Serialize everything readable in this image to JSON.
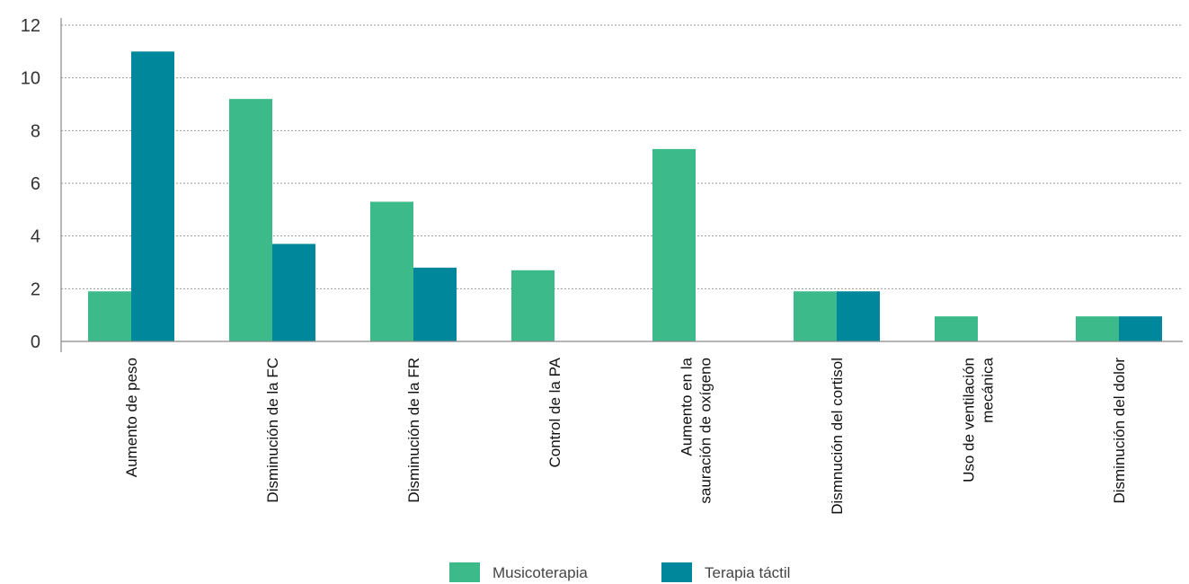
{
  "chart_data": {
    "type": "bar",
    "title": "",
    "xlabel": "",
    "ylabel": "",
    "categories": [
      [
        "Aumento de peso"
      ],
      [
        "Disminución de la FC"
      ],
      [
        "Disminución de la FR"
      ],
      [
        "Control de la PA"
      ],
      [
        "Aumento en la",
        "sauración de oxígeno"
      ],
      [
        "Dismnución del cortisol"
      ],
      [
        "Uso de ventilación",
        "mecánica"
      ],
      [
        "Disminución del dolor"
      ]
    ],
    "series": [
      {
        "name": "Musicoterapia",
        "color": "#3dba89",
        "values": [
          1.9,
          9.2,
          5.3,
          2.7,
          7.3,
          1.9,
          0.95,
          0.95
        ]
      },
      {
        "name": "Terapia táctil",
        "color": "#00879b",
        "values": [
          11,
          3.7,
          2.8,
          0,
          0,
          1.9,
          0,
          0.95
        ]
      }
    ],
    "ylim": [
      0,
      12
    ],
    "yticks": [
      "0",
      "2",
      "4",
      "6",
      "8",
      "10",
      "12"
    ],
    "grid": true,
    "legend_position": "bottom-center"
  }
}
